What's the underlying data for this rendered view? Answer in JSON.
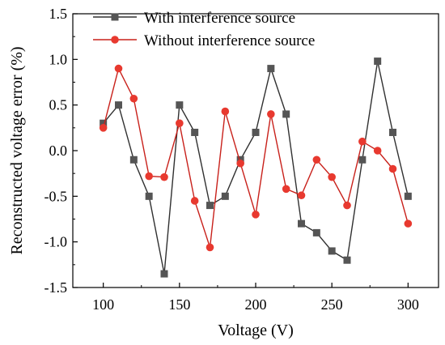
{
  "chart_data": {
    "type": "line",
    "xlabel": "Voltage (V)",
    "ylabel": "Reconstructed voltage error (%)",
    "xlim": [
      80,
      320
    ],
    "ylim": [
      -1.5,
      1.5
    ],
    "xticks": [
      100,
      150,
      200,
      250,
      300
    ],
    "xtick_labels": [
      "100",
      "150",
      "200",
      "250",
      "300"
    ],
    "yticks": [
      -1.5,
      -1.0,
      -0.5,
      0.0,
      0.5,
      1.0,
      1.5
    ],
    "ytick_labels": [
      "-1.5",
      "-1.0",
      "-0.5",
      "0.0",
      "0.5",
      "1.0",
      "1.5"
    ],
    "grid": false,
    "legend_position": "top-left",
    "x": [
      100,
      110,
      120,
      130,
      140,
      150,
      160,
      170,
      180,
      190,
      200,
      210,
      220,
      230,
      240,
      250,
      260,
      270,
      280,
      290,
      300
    ],
    "series": [
      {
        "name": "With interference source",
        "marker": "square",
        "color": "#555555",
        "line_color": "#303030",
        "values": [
          0.3,
          0.5,
          -0.1,
          -0.5,
          -1.35,
          0.5,
          0.2,
          -0.6,
          -0.5,
          -0.1,
          0.2,
          0.9,
          0.4,
          -0.8,
          -0.9,
          -1.1,
          -1.2,
          -0.1,
          0.98,
          0.2,
          -0.5
        ]
      },
      {
        "name": "Without interference source",
        "marker": "circle",
        "color": "#e8392f",
        "line_color": "#c8201a",
        "values": [
          0.25,
          0.9,
          0.57,
          -0.28,
          -0.29,
          0.3,
          -0.55,
          -1.06,
          0.43,
          -0.14,
          -0.7,
          0.4,
          -0.42,
          -0.49,
          -0.1,
          -0.29,
          -0.6,
          0.1,
          0.0,
          -0.2,
          -0.8
        ]
      }
    ]
  }
}
